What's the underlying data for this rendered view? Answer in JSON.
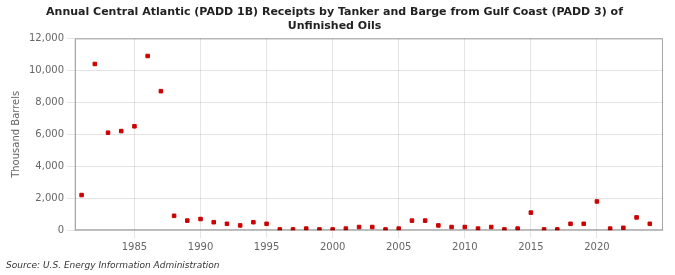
{
  "chart_data": {
    "type": "scatter",
    "title": "Annual Central Atlantic (PADD 1B) Receipts by Tanker and Barge from Gulf Coast (PADD 3) of\nUnfinished Oils",
    "ylabel": "Thousand Barrels",
    "annotations": [
      "Source: U.S. Energy Information Administration"
    ],
    "x": [
      1981,
      1982,
      1983,
      1984,
      1985,
      1986,
      1987,
      1988,
      1989,
      1990,
      1991,
      1992,
      1993,
      1994,
      1995,
      1996,
      1997,
      1998,
      1999,
      2000,
      2001,
      2002,
      2003,
      2004,
      2005,
      2006,
      2007,
      2008,
      2009,
      2010,
      2011,
      2012,
      2013,
      2014,
      2015,
      2016,
      2017,
      2018,
      2019,
      2020,
      2021,
      2022,
      2023,
      2024
    ],
    "values": [
      2200,
      10400,
      6100,
      6200,
      6500,
      10900,
      8700,
      900,
      600,
      700,
      500,
      400,
      300,
      500,
      400,
      50,
      50,
      100,
      50,
      50,
      100,
      200,
      200,
      50,
      100,
      600,
      600,
      300,
      200,
      200,
      100,
      200,
      50,
      100,
      1100,
      50,
      50,
      400,
      400,
      1800,
      100,
      150,
      800,
      400
    ],
    "color": "#cc0000",
    "marker": "square",
    "xlim": [
      1980.5,
      2025
    ],
    "xticks": [
      1985,
      1990,
      1995,
      2000,
      2005,
      2010,
      2015,
      2020
    ],
    "ylim": [
      0,
      12000
    ],
    "yticks": [
      0,
      {
        "value": 2000,
        "label": "2,000"
      },
      {
        "value": 4000,
        "label": "4,000"
      },
      {
        "value": 6000,
        "label": "6,000"
      },
      {
        "value": 8000,
        "label": "8,000"
      },
      {
        "value": 10000,
        "label": "10,000"
      },
      {
        "value": 12000,
        "label": "12,000"
      }
    ],
    "grid": true
  }
}
